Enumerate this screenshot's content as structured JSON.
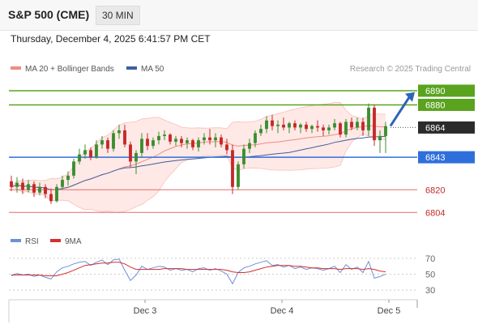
{
  "header": {
    "title": "S&P 500 (CME)",
    "timeframe": "30 MIN"
  },
  "datetime": "Thursday, December 4, 2025 6:41:57 PM CET",
  "legend": {
    "bollinger": "MA 20 + Bollinger Bands",
    "ma50": "MA 50",
    "credit": "Research © 2025 Trading Central"
  },
  "colors": {
    "up_candle": "#3c8d2f",
    "down_candle": "#c62828",
    "bollinger": "#f28b82",
    "bollinger_fill": "#fde1de",
    "ma50": "#3f5f9f",
    "target": "#5aa31f",
    "pivot": "#2f6fdc",
    "support": "#e56b6b",
    "current": "#333333",
    "rsi": "#6f8fd8",
    "rsi_ma": "#d32f2f"
  },
  "chart_data": {
    "type": "candlestick",
    "x_ticks": [
      "Dec 3",
      "Dec 4",
      "Dec 5"
    ],
    "y_range": [
      6795,
      6898
    ],
    "levels": [
      {
        "label": "6890",
        "value": 6890,
        "kind": "target"
      },
      {
        "label": "6880",
        "value": 6880,
        "kind": "target"
      },
      {
        "label": "6864",
        "value": 6864,
        "kind": "current"
      },
      {
        "label": "6843",
        "value": 6843,
        "kind": "pivot"
      },
      {
        "label": "6820",
        "value": 6820,
        "kind": "support"
      },
      {
        "label": "6804",
        "value": 6804,
        "kind": "support"
      }
    ],
    "candles": [
      [
        6826,
        6830,
        6819,
        6822
      ],
      [
        6822,
        6829,
        6818,
        6825
      ],
      [
        6825,
        6828,
        6817,
        6820
      ],
      [
        6820,
        6827,
        6818,
        6824
      ],
      [
        6824,
        6826,
        6815,
        6818
      ],
      [
        6818,
        6825,
        6816,
        6822
      ],
      [
        6822,
        6824,
        6814,
        6817
      ],
      [
        6817,
        6821,
        6810,
        6812
      ],
      [
        6812,
        6824,
        6811,
        6822
      ],
      [
        6822,
        6830,
        6820,
        6827
      ],
      [
        6827,
        6833,
        6823,
        6830
      ],
      [
        6830,
        6842,
        6828,
        6840
      ],
      [
        6840,
        6849,
        6838,
        6845
      ],
      [
        6845,
        6852,
        6842,
        6848
      ],
      [
        6848,
        6850,
        6841,
        6843
      ],
      [
        6843,
        6855,
        6842,
        6852
      ],
      [
        6852,
        6858,
        6849,
        6855
      ],
      [
        6855,
        6857,
        6846,
        6849
      ],
      [
        6849,
        6862,
        6847,
        6860
      ],
      [
        6860,
        6866,
        6856,
        6862
      ],
      [
        6862,
        6866,
        6850,
        6852
      ],
      [
        6852,
        6854,
        6836,
        6840
      ],
      [
        6840,
        6848,
        6831,
        6846
      ],
      [
        6846,
        6860,
        6843,
        6856
      ],
      [
        6856,
        6860,
        6848,
        6851
      ],
      [
        6851,
        6857,
        6849,
        6855
      ],
      [
        6855,
        6861,
        6852,
        6858
      ],
      [
        6858,
        6862,
        6855,
        6859
      ],
      [
        6859,
        6860,
        6852,
        6854
      ],
      [
        6854,
        6858,
        6851,
        6856
      ],
      [
        6856,
        6858,
        6850,
        6853
      ],
      [
        6853,
        6857,
        6849,
        6855
      ],
      [
        6855,
        6856,
        6848,
        6850
      ],
      [
        6850,
        6857,
        6847,
        6855
      ],
      [
        6855,
        6860,
        6852,
        6857
      ],
      [
        6857,
        6863,
        6852,
        6855
      ],
      [
        6855,
        6860,
        6850,
        6857
      ],
      [
        6857,
        6859,
        6850,
        6852
      ],
      [
        6852,
        6856,
        6845,
        6848
      ],
      [
        6848,
        6852,
        6817,
        6822
      ],
      [
        6822,
        6840,
        6820,
        6838
      ],
      [
        6838,
        6852,
        6835,
        6849
      ],
      [
        6849,
        6856,
        6846,
        6853
      ],
      [
        6853,
        6862,
        6850,
        6860
      ],
      [
        6860,
        6866,
        6858,
        6863
      ],
      [
        6863,
        6872,
        6860,
        6869
      ],
      [
        6869,
        6873,
        6862,
        6865
      ],
      [
        6865,
        6869,
        6860,
        6866
      ],
      [
        6866,
        6871,
        6862,
        6864
      ],
      [
        6864,
        6868,
        6860,
        6867
      ],
      [
        6867,
        6869,
        6862,
        6864
      ],
      [
        6864,
        6867,
        6860,
        6866
      ],
      [
        6866,
        6868,
        6861,
        6863
      ],
      [
        6863,
        6866,
        6860,
        6865
      ],
      [
        6865,
        6869,
        6861,
        6864
      ],
      [
        6864,
        6866,
        6858,
        6862
      ],
      [
        6862,
        6866,
        6859,
        6864
      ],
      [
        6864,
        6870,
        6862,
        6867
      ],
      [
        6867,
        6868,
        6857,
        6859
      ],
      [
        6859,
        6870,
        6857,
        6868
      ],
      [
        6868,
        6871,
        6862,
        6864
      ],
      [
        6864,
        6871,
        6862,
        6868
      ],
      [
        6868,
        6871,
        6858,
        6862
      ],
      [
        6862,
        6881,
        6858,
        6878
      ],
      [
        6878,
        6880,
        6851,
        6855
      ],
      [
        6855,
        6862,
        6846,
        6858
      ],
      [
        6858,
        6868,
        6846,
        6865
      ]
    ],
    "rsi": {
      "ticks": [
        70,
        50,
        30
      ],
      "y_range": [
        25,
        75
      ],
      "rsi": [
        48,
        51,
        49,
        50,
        47,
        49,
        46,
        44,
        53,
        58,
        60,
        63,
        65,
        66,
        61,
        65,
        68,
        62,
        68,
        69,
        55,
        42,
        49,
        60,
        56,
        58,
        60,
        59,
        55,
        57,
        55,
        56,
        53,
        57,
        58,
        55,
        57,
        54,
        50,
        38,
        52,
        58,
        60,
        63,
        65,
        67,
        61,
        62,
        59,
        61,
        57,
        59,
        56,
        58,
        57,
        55,
        57,
        60,
        52,
        62,
        56,
        59,
        52,
        66,
        45,
        47,
        50
      ],
      "ma": [
        49,
        49,
        49,
        49,
        49,
        49,
        48,
        48,
        48,
        50,
        52,
        55,
        58,
        61,
        62,
        63,
        64,
        64,
        65,
        65,
        63,
        59,
        56,
        56,
        56,
        56,
        56,
        57,
        57,
        57,
        57,
        56,
        56,
        56,
        56,
        56,
        56,
        56,
        55,
        53,
        52,
        52,
        53,
        55,
        57,
        59,
        60,
        61,
        61,
        61,
        60,
        60,
        59,
        58,
        58,
        57,
        57,
        57,
        56,
        57,
        57,
        57,
        56,
        57,
        56,
        54,
        53
      ],
      "legend_rsi": "RSI",
      "legend_ma": "9MA"
    }
  }
}
